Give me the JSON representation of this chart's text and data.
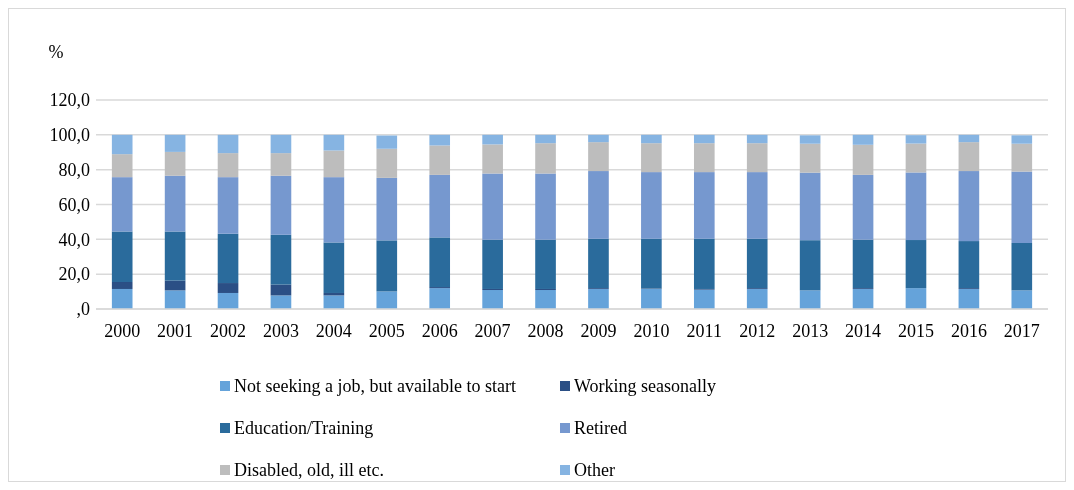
{
  "chart_data": {
    "type": "bar",
    "stacked": true,
    "ylabel": "%",
    "categories": [
      "2000",
      "2001",
      "2002",
      "2003",
      "2004",
      "2005",
      "2006",
      "2007",
      "2008",
      "2009",
      "2010",
      "2011",
      "2012",
      "2013",
      "2014",
      "2015",
      "2016",
      "2017"
    ],
    "series": [
      {
        "name": "Not seeking a job, but available to start",
        "color": "#65a3da",
        "values": [
          11.5,
          10.7,
          9.2,
          7.8,
          7.8,
          10.1,
          12.0,
          10.9,
          10.9,
          11.5,
          11.5,
          11.1,
          11.5,
          10.7,
          11.5,
          12.0,
          11.5,
          10.7
        ]
      },
      {
        "name": "Working seasonally",
        "color": "#2b4f85",
        "values": [
          4.0,
          5.6,
          5.7,
          6.2,
          1.4,
          null,
          0.6,
          0.6,
          0.6,
          0.5,
          0.3,
          0.4,
          0.5,
          null,
          0.5,
          null,
          0.5,
          null
        ]
      },
      {
        "name": "Education/Training",
        "color": "#2a6b9c",
        "values": [
          29.0,
          28.2,
          28.3,
          28.6,
          29.0,
          29.3,
          28.5,
          28.3,
          28.3,
          28.3,
          28.5,
          28.8,
          28.3,
          28.8,
          27.8,
          27.6,
          27.0,
          27.2
        ]
      },
      {
        "name": "Retired",
        "color": "#7698cf",
        "values": [
          31.2,
          32.0,
          32.5,
          33.9,
          37.5,
          35.9,
          35.9,
          38.0,
          38.0,
          38.9,
          38.3,
          38.3,
          38.3,
          38.8,
          37.2,
          38.8,
          40.2,
          41.0
        ]
      },
      {
        "name": "Disabled, old, ill etc.",
        "color": "#bdbdbd",
        "values": [
          13.2,
          13.7,
          13.8,
          13.0,
          15.3,
          16.7,
          16.9,
          16.7,
          17.4,
          16.6,
          16.6,
          16.6,
          16.6,
          16.6,
          17.3,
          16.6,
          16.6,
          16.0
        ]
      },
      {
        "name": "Other",
        "color": "#86b4e2",
        "values": [
          11.1,
          9.8,
          10.5,
          10.5,
          9.0,
          7.6,
          6.1,
          5.5,
          4.8,
          4.2,
          4.8,
          4.8,
          4.8,
          4.8,
          5.7,
          4.8,
          4.2,
          4.8
        ]
      }
    ],
    "ylim": [
      0,
      120
    ],
    "yticks": [
      {
        "value": 0,
        "label": ",0"
      },
      {
        "value": 20,
        "label": "20,0"
      },
      {
        "value": 40,
        "label": "40,0"
      },
      {
        "value": 60,
        "label": "60,0"
      },
      {
        "value": 80,
        "label": "80,0"
      },
      {
        "value": 100,
        "label": "100,0"
      },
      {
        "value": 120,
        "label": "120,0"
      }
    ],
    "grid": "y",
    "legend": "bottom"
  }
}
